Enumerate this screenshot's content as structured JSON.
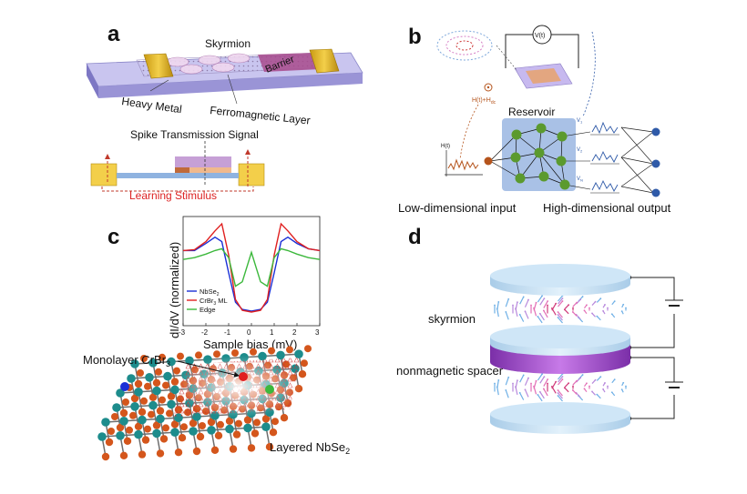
{
  "panel_a": {
    "letter": "a",
    "skyrmion": "Skyrmion",
    "barrier": "Barrier",
    "heavy_metal": "Heavy Metal",
    "ferromagnetic_layer": "Ferromagnetic Layer",
    "spike_signal": "Spike Transmission Signal",
    "learning_stimulus": "Learning Stimulus"
  },
  "panel_b": {
    "letter": "b",
    "vt": "V(t)",
    "field": "H(t)+H",
    "field_sub": "dc",
    "ht": "H(t)",
    "reservoir": "Reservoir",
    "v1": "V",
    "v1_sub": "1",
    "v2": "V",
    "v2_sub": "2",
    "vn": "V",
    "vn_sub": "N",
    "low_input": "Low-dimensional input",
    "high_output": "High-dimensional output",
    "colors": {
      "reservoir_box": "#a9c1e6",
      "node": "#5b9a2e",
      "input_node": "#b5541c",
      "output_node": "#2f5aa8"
    }
  },
  "panel_c": {
    "letter": "c",
    "monolayer_label": "Monolayer CrBr",
    "monolayer_sub": "3",
    "layered_label": "Layered NbSe",
    "layered_sub": "2",
    "colors": {
      "nb": "#1d8c8c",
      "se": "#d4561c",
      "red_tip": "#e02020",
      "green_tip": "#3cb83c",
      "blue_tip": "#1a2fd6"
    },
    "chart_data": {
      "type": "line",
      "xlabel": "Sample bias (mV)",
      "ylabel": "dI/dV (normalized)",
      "xlim": [
        -3,
        3
      ],
      "xticks": [
        "-3",
        "-2",
        "-1",
        "0",
        "1",
        "2",
        "3"
      ],
      "grid": false,
      "legend_position": "bottom-left",
      "x": [
        -3.0,
        -2.5,
        -2.0,
        -1.6,
        -1.3,
        -1.0,
        -0.7,
        -0.4,
        0.0,
        0.4,
        0.7,
        1.0,
        1.3,
        1.6,
        2.0,
        2.5,
        3.0
      ],
      "series": [
        {
          "name": "NbSe",
          "name_sub": "2",
          "color": "#1a2fd6",
          "values": [
            0.7,
            0.7,
            0.78,
            0.85,
            0.8,
            0.45,
            0.12,
            0.04,
            0.02,
            0.04,
            0.12,
            0.45,
            0.8,
            0.85,
            0.78,
            0.72,
            0.7
          ]
        },
        {
          "name": "CrBr",
          "name_sub": "3",
          "name_suffix": " ML",
          "color": "#e02020",
          "values": [
            0.7,
            0.71,
            0.8,
            0.92,
            1.0,
            0.65,
            0.15,
            0.03,
            0.01,
            0.03,
            0.15,
            0.65,
            1.0,
            0.92,
            0.8,
            0.72,
            0.7
          ]
        },
        {
          "name": "Edge",
          "color": "#3cb83c",
          "values": [
            0.6,
            0.62,
            0.66,
            0.7,
            0.72,
            0.62,
            0.3,
            0.35,
            0.68,
            0.35,
            0.3,
            0.62,
            0.72,
            0.7,
            0.66,
            0.62,
            0.6
          ]
        }
      ]
    }
  },
  "panel_d": {
    "letter": "d",
    "skyrmion": "skyrmion",
    "spacer": "nonmagnetic spacer",
    "colors": {
      "disk": "#cfe6f7",
      "spacer": "#a34fd0"
    }
  }
}
